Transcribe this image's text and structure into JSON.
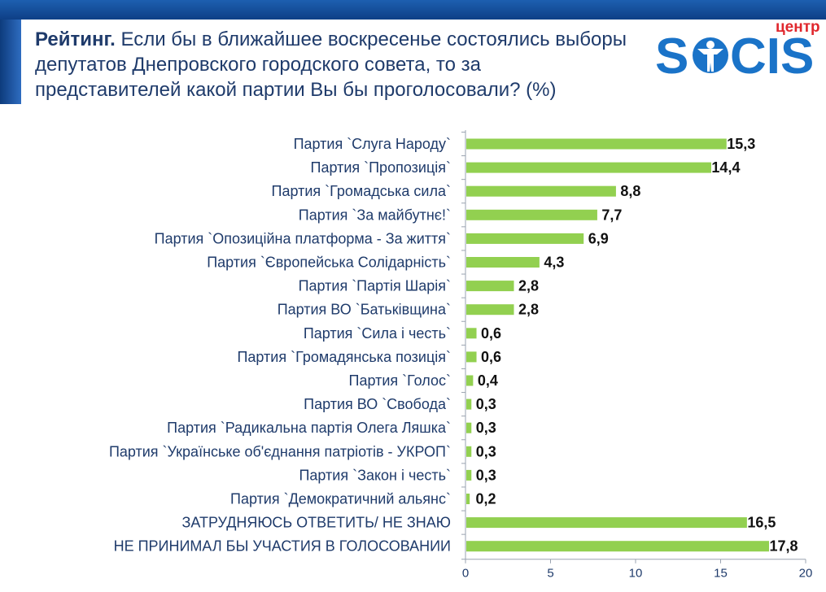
{
  "header": {
    "title_bold": "Рейтинг.",
    "title_text": "Если бы в ближайшее воскресенье состоялись выборы депутатов Днепровского городского совета, то за представителей какой партии Вы бы проголосовали?  (%)"
  },
  "logo": {
    "small_text": "центр",
    "main_text": "SOCIS",
    "colors": {
      "blue": "#1a73c8",
      "red": "#e0272d"
    }
  },
  "colors": {
    "bar": "#92d050",
    "axis": "#9aa3b0",
    "label": "#1f3b6b",
    "header_blue": "#1d5fb0"
  },
  "chart_data": {
    "type": "bar",
    "orientation": "horizontal",
    "title": "",
    "xlabel": "",
    "ylabel": "",
    "xlim": [
      0,
      20
    ],
    "ticks": [
      0,
      5,
      10,
      15,
      20
    ],
    "grid": false,
    "categories": [
      "Партия `Слуга Народу`",
      "Партия `Пропозиція`",
      "Партия `Громадська сила`",
      "Партия `За майбутнє!`",
      "Партия `Опозиційна платформа - За життя`",
      "Партия `Європейська Солідарність`",
      "Партия `Партія Шарія`",
      "Партия ВО `Батьківщина`",
      "Партия `Сила і честь`",
      "Партия `Громадянська позиція`",
      "Партия `Голос`",
      "Партия ВО `Свобода`",
      "Партия `Радикальна партія Олега Ляшка`",
      "Партия `Українське об'єднання патріотів - УКРОП`",
      "Партия `Закон і честь`",
      "Партия `Демократичний альянс`",
      "ЗАТРУДНЯЮСЬ ОТВЕТИТЬ/ НЕ ЗНАЮ",
      "НЕ ПРИНИМАЛ БЫ УЧАСТИЯ В ГОЛОСОВАНИИ"
    ],
    "values": [
      15.3,
      14.4,
      8.8,
      7.7,
      6.9,
      4.3,
      2.8,
      2.8,
      0.6,
      0.6,
      0.4,
      0.3,
      0.3,
      0.3,
      0.3,
      0.2,
      16.5,
      17.8
    ],
    "value_labels": [
      "15,3",
      "14,4",
      "8,8",
      "7,7",
      "6,9",
      "4,3",
      "2,8",
      "2,8",
      "0,6",
      "0,6",
      "0,4",
      "0,3",
      "0,3",
      "0,3",
      "0,3",
      "0,2",
      "16,5",
      "17,8"
    ]
  }
}
